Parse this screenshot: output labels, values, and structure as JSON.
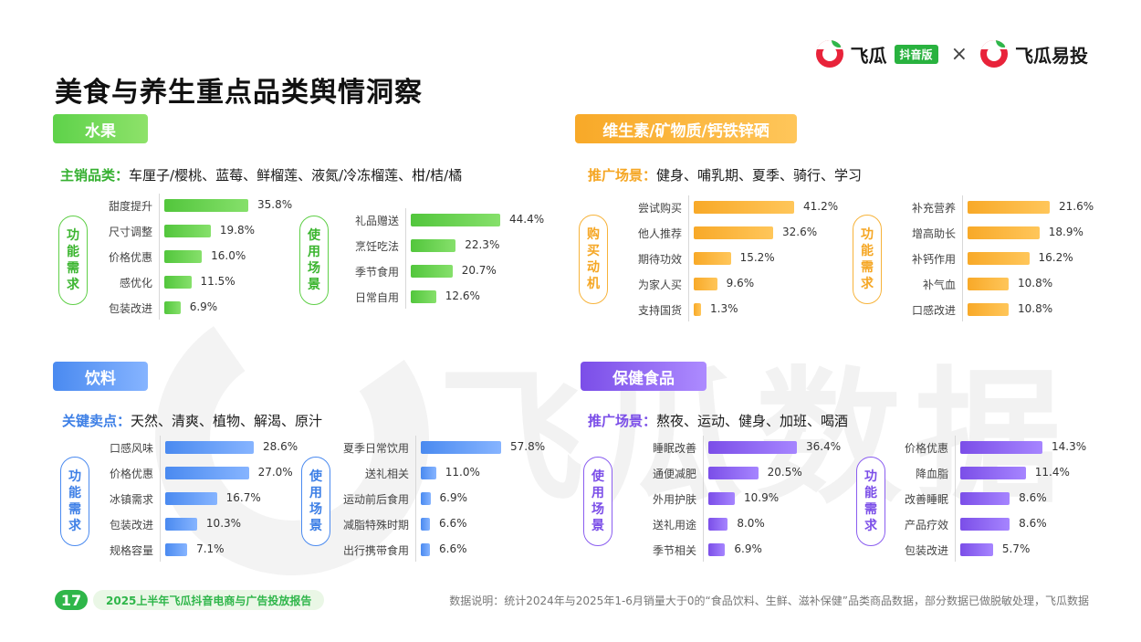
{
  "brand": {
    "name_left": "飞瓜",
    "badge": "抖音版",
    "separator": "×",
    "name_right": "飞瓜易投",
    "watermark": "飞瓜数据"
  },
  "title": "美食与养生重点品类舆情洞察",
  "colors": {
    "green": "#5ed24a",
    "orange": "#f8a928",
    "blue": "#4a8af0",
    "purple": "#7b4ee8"
  },
  "sections": {
    "fruit": {
      "tag": "水果",
      "sub_key": "主销品类：",
      "sub_val": "车厘子/樱桃、蓝莓、鲜榴莲、液氮/冷冻榴莲、柑/桔/橘"
    },
    "vitamin": {
      "tag": "维生素/矿物质/钙铁锌硒",
      "sub_key": "推广场景：",
      "sub_val": "健身、哺乳期、夏季、骑行、学习"
    },
    "drink": {
      "tag": "饮料",
      "sub_key": "关键卖点：",
      "sub_val": "天然、清爽、植物、解渴、原汁"
    },
    "health": {
      "tag": "保健食品",
      "sub_key": "推广场景：",
      "sub_val": "熬夜、运动、健身、加班、喝酒"
    }
  },
  "chart_data": [
    {
      "type": "bar",
      "group": "水果",
      "label": "功能需求",
      "categories": [
        "甜度提升",
        "尺寸调整",
        "价格优惠",
        "感优化",
        "包装改进"
      ],
      "values": [
        35.8,
        19.8,
        16.0,
        11.5,
        6.9
      ],
      "value_labels": [
        "35.8%",
        "19.8%",
        "16.0%",
        "11.5%",
        "6.9%"
      ]
    },
    {
      "type": "bar",
      "group": "水果",
      "label": "使用场景",
      "categories": [
        "礼品赠送",
        "烹饪吃法",
        "季节食用",
        "日常自用"
      ],
      "values": [
        44.4,
        22.3,
        20.7,
        12.6
      ],
      "value_labels": [
        "44.4%",
        "22.3%",
        "20.7%",
        "12.6%"
      ]
    },
    {
      "type": "bar",
      "group": "维生素/矿物质/钙铁锌硒",
      "label": "购买动机",
      "categories": [
        "尝试购买",
        "他人推荐",
        "期待功效",
        "为家人买",
        "支持国货"
      ],
      "values": [
        41.2,
        32.6,
        15.2,
        9.6,
        1.3
      ],
      "value_labels": [
        "41.2%",
        "32.6%",
        "15.2%",
        "9.6%",
        "1.3%"
      ]
    },
    {
      "type": "bar",
      "group": "维生素/矿物质/钙铁锌硒",
      "label": "功能需求",
      "categories": [
        "补充营养",
        "增高助长",
        "补钙作用",
        "补气血",
        "口感改进"
      ],
      "values": [
        21.6,
        18.9,
        16.2,
        10.8,
        10.8
      ],
      "value_labels": [
        "21.6%",
        "18.9%",
        "16.2%",
        "10.8%",
        "10.8%"
      ]
    },
    {
      "type": "bar",
      "group": "饮料",
      "label": "功能需求",
      "categories": [
        "口感风味",
        "价格优惠",
        "冰镇需求",
        "包装改进",
        "规格容量"
      ],
      "values": [
        28.6,
        27.0,
        16.7,
        10.3,
        7.1
      ],
      "value_labels": [
        "28.6%",
        "27.0%",
        "16.7%",
        "10.3%",
        "7.1%"
      ]
    },
    {
      "type": "bar",
      "group": "饮料",
      "label": "使用场景",
      "categories": [
        "夏季日常饮用",
        "送礼相关",
        "运动前后食用",
        "减脂特殊时期",
        "出行携带食用"
      ],
      "values": [
        57.8,
        11.0,
        6.9,
        6.6,
        6.6
      ],
      "value_labels": [
        "57.8%",
        "11.0%",
        "6.9%",
        "6.6%",
        "6.6%"
      ]
    },
    {
      "type": "bar",
      "group": "保健食品",
      "label": "使用场景",
      "categories": [
        "睡眠改善",
        "通便减肥",
        "外用护肤",
        "送礼用途",
        "季节相关"
      ],
      "values": [
        36.4,
        20.5,
        10.9,
        8.0,
        6.9
      ],
      "value_labels": [
        "36.4%",
        "20.5%",
        "10.9%",
        "8.0%",
        "6.9%"
      ]
    },
    {
      "type": "bar",
      "group": "保健食品",
      "label": "功能需求",
      "categories": [
        "价格优惠",
        "降血脂",
        "改善睡眠",
        "产品疗效",
        "包装改进"
      ],
      "values": [
        14.3,
        11.4,
        8.6,
        8.6,
        5.7
      ],
      "value_labels": [
        "14.3%",
        "11.4%",
        "8.6%",
        "8.6%",
        "5.7%"
      ]
    }
  ],
  "footer": {
    "page": "17",
    "report": "2025上半年飞瓜抖音电商与广告投放报告",
    "note": "数据说明：统计2024年与2025年1-6月销量大于0的“食品饮料、生鲜、滋补保健”品类商品数据，部分数据已做脱敏处理，飞瓜数据"
  }
}
